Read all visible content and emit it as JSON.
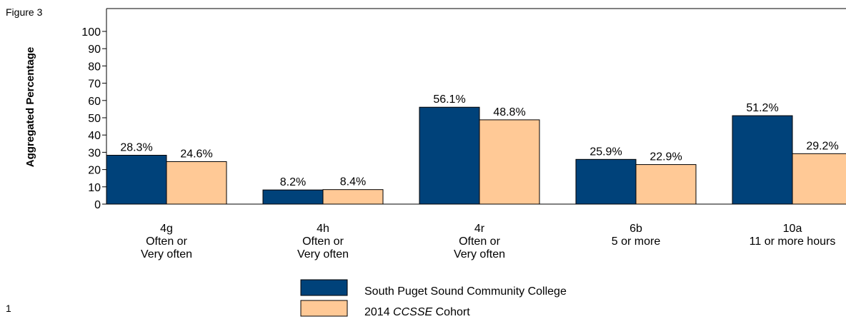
{
  "figure_label": "Figure 3",
  "page_number": "1",
  "colors": {
    "college": "#00427A",
    "cohort": "#FFC996"
  },
  "chart_data": {
    "type": "bar",
    "title": "",
    "xlabel": "",
    "ylabel": "Aggregated Percentage",
    "ylim": [
      0,
      100
    ],
    "yticks": [
      0,
      10,
      20,
      30,
      40,
      50,
      60,
      70,
      80,
      90,
      100
    ],
    "grid": false,
    "legend_position": "bottom-center",
    "categories": [
      {
        "code": "4g",
        "lines": [
          "Often or",
          "Very often"
        ]
      },
      {
        "code": "4h",
        "lines": [
          "Often or",
          "Very often"
        ]
      },
      {
        "code": "4r",
        "lines": [
          "Often or",
          "Very often"
        ]
      },
      {
        "code": "6b",
        "lines": [
          "5 or more"
        ]
      },
      {
        "code": "10a",
        "lines": [
          "11 or more hours"
        ]
      }
    ],
    "series": [
      {
        "name": "South Puget Sound Community College",
        "values": [
          28.3,
          8.2,
          56.1,
          25.9,
          51.2
        ],
        "labels": [
          "28.3%",
          "8.2%",
          "56.1%",
          "25.9%",
          "51.2%"
        ]
      },
      {
        "name": "2014 CCSSE Cohort",
        "name_plain": "2014",
        "name_italic": "CCSSE",
        "name_suffix": "Cohort",
        "values": [
          24.6,
          8.4,
          48.8,
          22.9,
          29.2
        ],
        "labels": [
          "24.6%",
          "8.4%",
          "48.8%",
          "22.9%",
          "29.2%"
        ]
      }
    ]
  }
}
